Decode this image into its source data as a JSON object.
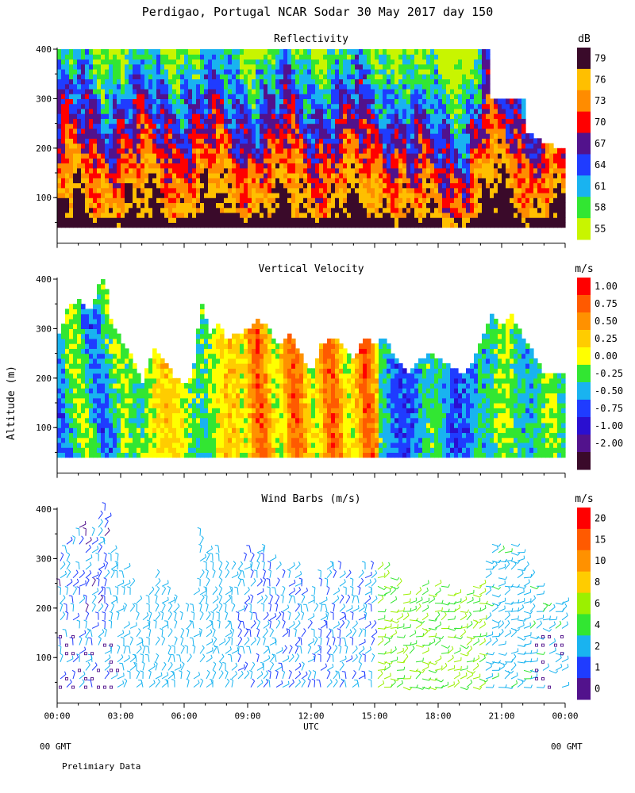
{
  "title": "Perdigao, Portugal  NCAR Sodar  30 May 2017  day 150",
  "footer": {
    "left_gmt": "00 GMT",
    "right_gmt": "00 GMT",
    "note": "Prelimiary Data"
  },
  "ylabel": "Altitude (m)",
  "xlabel": "UTC",
  "chart_data": [
    {
      "type": "heatmap",
      "title": "Reflectivity",
      "colorbar_unit": "dB",
      "colorbar_labels": [
        "79",
        "76",
        "73",
        "70",
        "67",
        "64",
        "61",
        "58",
        "55"
      ],
      "colorbar_colors": [
        "#3a0a2a",
        "#ffbf00",
        "#ff8c00",
        "#ff0000",
        "#52128c",
        "#1f3cff",
        "#19b3f0",
        "#32e632",
        "#c8f500"
      ],
      "x_ticks": [
        "00:00",
        "03:00",
        "06:00",
        "09:00",
        "12:00",
        "15:00",
        "18:00",
        "21:00",
        "00:00"
      ],
      "y_ticks": [
        "100",
        "200",
        "300",
        "400"
      ],
      "xlim": [
        0,
        24
      ],
      "ylim": [
        25,
        410
      ]
    },
    {
      "type": "heatmap",
      "title": "Vertical Velocity",
      "colorbar_unit": "m/s",
      "colorbar_labels": [
        "1.00",
        "0.75",
        "0.50",
        "0.25",
        "0.00",
        "-0.25",
        "-0.50",
        "-0.75",
        "-1.00",
        "-2.00"
      ],
      "colorbar_colors": [
        "#ff0000",
        "#ff5a00",
        "#ff9100",
        "#ffcc00",
        "#ffff00",
        "#32e632",
        "#19b3f0",
        "#1f3cff",
        "#2a0fd0",
        "#52128c",
        "#3a0a2a"
      ],
      "x_ticks": [
        "00:00",
        "03:00",
        "06:00",
        "09:00",
        "12:00",
        "15:00",
        "18:00",
        "21:00",
        "00:00"
      ],
      "y_ticks": [
        "100",
        "200",
        "300",
        "400"
      ],
      "xlim": [
        0,
        24
      ],
      "ylim": [
        25,
        410
      ]
    },
    {
      "type": "scatter",
      "title": "Wind Barbs (m/s)",
      "colorbar_unit": "m/s",
      "colorbar_labels": [
        "20",
        "15",
        "10",
        "8",
        "6",
        "4",
        "2",
        "1",
        "0"
      ],
      "colorbar_colors": [
        "#ff0000",
        "#ff5a00",
        "#ff9100",
        "#ffcc00",
        "#9bf000",
        "#32e632",
        "#19b3f0",
        "#1f3cff",
        "#52128c"
      ],
      "x_ticks": [
        "00:00",
        "03:00",
        "06:00",
        "09:00",
        "12:00",
        "15:00",
        "18:00",
        "21:00",
        "00:00"
      ],
      "y_ticks": [
        "100",
        "200",
        "300",
        "400"
      ],
      "xlim": [
        0,
        24
      ],
      "ylim": [
        25,
        410
      ]
    }
  ]
}
